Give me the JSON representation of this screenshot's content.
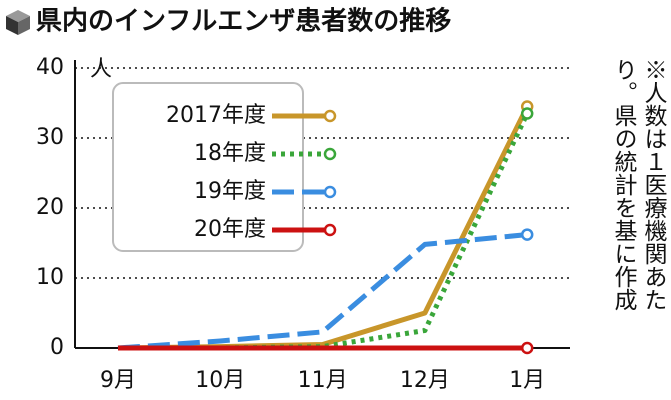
{
  "chart_data": {
    "type": "line",
    "title": "県内のインフルエンザ患者数の推移",
    "y_unit": "人",
    "note": "※人数は１医療機関あたり。県の統計を基に作成",
    "categories": [
      "9月",
      "10月",
      "11月",
      "12月",
      "1月"
    ],
    "series": [
      {
        "name": "2017年度",
        "color": "#c8962a",
        "style": "solid",
        "values": [
          0,
          0.2,
          0.5,
          5,
          34.5
        ]
      },
      {
        "name": "18年度",
        "color": "#3aa63a",
        "style": "dotted",
        "values": [
          0,
          0,
          0.2,
          2.5,
          33.5
        ]
      },
      {
        "name": "19年度",
        "color": "#3a8de0",
        "style": "dashed",
        "values": [
          0,
          1,
          2.3,
          14.8,
          16.2
        ]
      },
      {
        "name": "20年度",
        "color": "#cc1111",
        "style": "solid",
        "values": [
          0,
          0,
          0,
          0,
          0
        ]
      }
    ],
    "ylim": [
      0,
      40
    ],
    "yticks": [
      0,
      10,
      20,
      30,
      40
    ],
    "grid": true
  }
}
